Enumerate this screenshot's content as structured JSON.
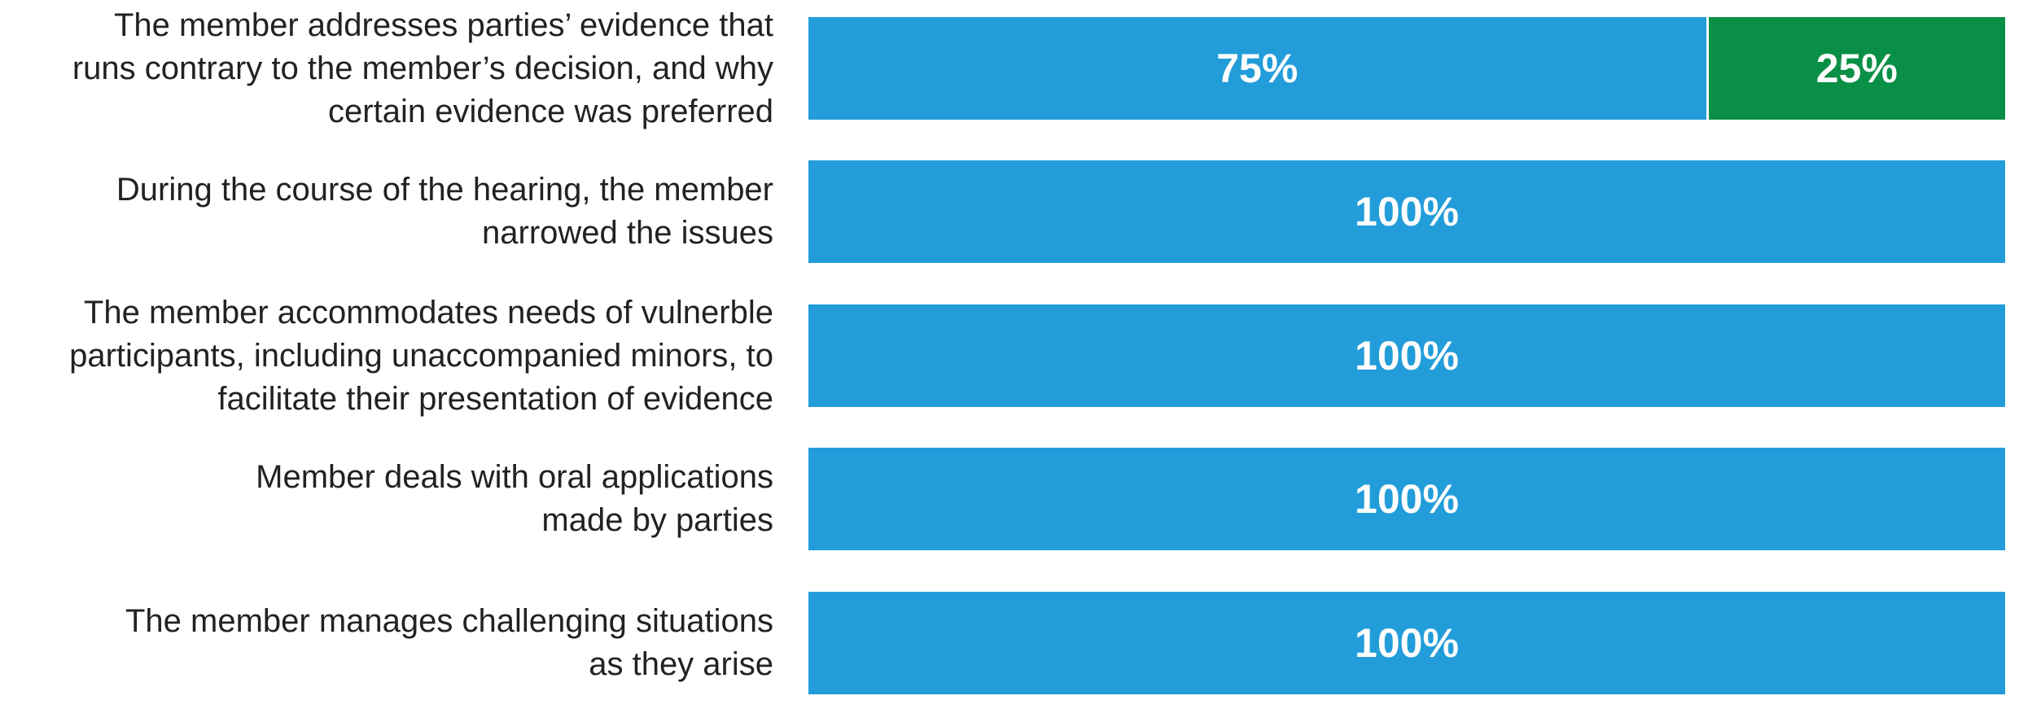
{
  "chart_data": {
    "type": "bar",
    "orientation": "horizontal",
    "stacked": true,
    "title": "",
    "xlabel": "",
    "ylabel": "",
    "xlim": [
      0,
      100
    ],
    "grid": false,
    "legend": "none",
    "categories": [
      [
        "The member addresses parties’ evidence that",
        "runs contrary to the member’s decision, and why",
        "certain evidence was preferred"
      ],
      [
        "During the course of the hearing, the member",
        "narrowed the issues"
      ],
      [
        "The member accommodates needs of vulnerble",
        "participants, including unaccompanied minors, to",
        "facilitate their presentation of evidence"
      ],
      [
        "Member deals with oral applications",
        "made by parties"
      ],
      [
        "The member manages challenging situations",
        "as they arise"
      ]
    ],
    "series": [
      {
        "color": "#229dd9",
        "values": [
          75,
          100,
          100,
          100,
          100
        ],
        "labels": [
          "75%",
          "100%",
          "100%",
          "100%",
          "100%"
        ]
      },
      {
        "color": "#0a8f46",
        "values": [
          25,
          0,
          0,
          0,
          0
        ],
        "labels": [
          "25%",
          "",
          "",
          "",
          ""
        ]
      }
    ]
  }
}
